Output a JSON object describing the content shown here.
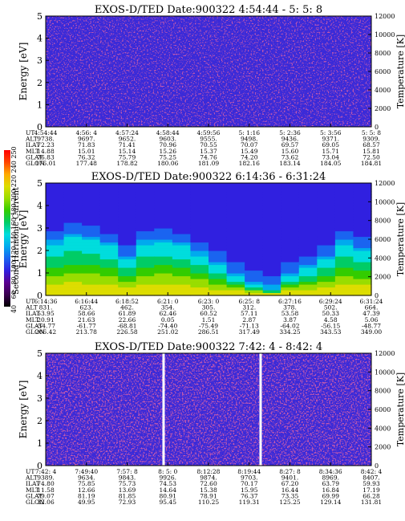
{
  "colors": {
    "background": "#ffffff",
    "panel_base": "#3a2ad8",
    "speckle": "#8a1a6a",
    "gap": "#ffffff",
    "colorbar_stops": [
      "#000000",
      "#3a0050",
      "#5a0090",
      "#3020e0",
      "#1a64f0",
      "#00aaee",
      "#00dddd",
      "#00cc66",
      "#33cc00",
      "#99dd00",
      "#dddd00",
      "#ffaa00",
      "#ff4400",
      "#ff0000"
    ]
  },
  "colorbar": {
    "label": "Second Harmonic Current",
    "ticks": [
      "40",
      "60",
      "80",
      "100",
      "120",
      "140",
      "160",
      "180",
      "200",
      "220",
      "240",
      "250"
    ]
  },
  "chart_data": [
    {
      "type": "heatmap",
      "title": "EXOS-D/TED   Date:900322  4:54:44 - 5: 5: 8",
      "ylabel": "Energy [eV]",
      "ylabel_right": "Temperature [K]",
      "ylim": [
        0,
        5
      ],
      "ylim_right": [
        0,
        12000
      ],
      "yticks": [
        "0",
        "1",
        "2",
        "3",
        "4",
        "5"
      ],
      "yticks_right": [
        "0",
        "2000",
        "4000",
        "6000",
        "8000",
        "10000",
        "12000"
      ],
      "row_labels": [
        "UT",
        "ALT",
        "ILAT",
        "MLT",
        "GLAT",
        "GLON"
      ],
      "columns": [
        {
          "UT": "4:54:44",
          "ALT": "9738.",
          "ILAT": "72.23",
          "MLT": "14.88",
          "GLAT": "76.83",
          "GLON": "176.01"
        },
        {
          "UT": "4:56: 4",
          "ALT": "9697.",
          "ILAT": "71.83",
          "MLT": "15.01",
          "GLAT": "76.32",
          "GLON": "177.48"
        },
        {
          "UT": "4:57:24",
          "ALT": "9652.",
          "ILAT": "71.41",
          "MLT": "15.14",
          "GLAT": "75.79",
          "GLON": "178.82"
        },
        {
          "UT": "4:58:44",
          "ALT": "9603.",
          "ILAT": "70.96",
          "MLT": "15.26",
          "GLAT": "75.25",
          "GLON": "180.06"
        },
        {
          "UT": "4:59:56",
          "ALT": "9555.",
          "ILAT": "70.55",
          "MLT": "15.37",
          "GLAT": "74.76",
          "GLON": "181.09"
        },
        {
          "UT": "5: 1:16",
          "ALT": "9498.",
          "ILAT": "70.07",
          "MLT": "15.49",
          "GLAT": "74.20",
          "GLON": "182.16"
        },
        {
          "UT": "5: 2:36",
          "ALT": "9436.",
          "ILAT": "69.57",
          "MLT": "15.60",
          "GLAT": "73.62",
          "GLON": "183.14"
        },
        {
          "UT": "5: 3:56",
          "ALT": "9371.",
          "ILAT": "69.05",
          "MLT": "15.71",
          "GLAT": "73.04",
          "GLON": "184.05"
        },
        {
          "UT": "5: 5: 8",
          "ALT": "9309.",
          "ILAT": "68.57",
          "MLT": "15.81",
          "GLAT": "72.50",
          "GLON": "184.81"
        }
      ],
      "gaps": []
    },
    {
      "type": "heatmap",
      "title": "EXOS-D/TED   Date:900322  6:14:36 - 6:31:24",
      "ylabel": "Energy [eV]",
      "ylabel_right": "Temperature [K]",
      "ylim": [
        0,
        5
      ],
      "ylim_right": [
        0,
        12000
      ],
      "yticks": [
        "0",
        "1",
        "2",
        "3",
        "4",
        "5"
      ],
      "yticks_right": [
        "0",
        "2000",
        "4000",
        "6000",
        "8000",
        "10000",
        "12000"
      ],
      "row_labels": [
        "UT",
        "ALT",
        "ILAT",
        "MLT",
        "GLAT",
        "GLON"
      ],
      "columns": [
        {
          "UT": "6:14:36",
          "ALT": "831.",
          "ILAT": "53.95",
          "MLT": "20.91",
          "GLAT": "-54.77",
          "GLON": "206.42"
        },
        {
          "UT": "6:16:44",
          "ALT": "623.",
          "ILAT": "58.66",
          "MLT": "21.63",
          "GLAT": "-61.77",
          "GLON": "213.78"
        },
        {
          "UT": "6:18:52",
          "ALT": "462.",
          "ILAT": "61.89",
          "MLT": "22.66",
          "GLAT": "-68.81",
          "GLON": "226.58"
        },
        {
          "UT": "6:21: 0",
          "ALT": "354.",
          "ILAT": "62.46",
          "MLT": "0.05",
          "GLAT": "-74.40",
          "GLON": "251.02"
        },
        {
          "UT": "6:23: 0",
          "ALT": "305.",
          "ILAT": "60.52",
          "MLT": "1.51",
          "GLAT": "-75.49",
          "GLON": "286.51"
        },
        {
          "UT": "6:25: 8",
          "ALT": "312.",
          "ILAT": "57.11",
          "MLT": "2.87",
          "GLAT": "-71.13",
          "GLON": "317.49"
        },
        {
          "UT": "6:27:16",
          "ALT": "378.",
          "ILAT": "53.58",
          "MLT": "3.87",
          "GLAT": "-64.02",
          "GLON": "334.25"
        },
        {
          "UT": "6:29:24",
          "ALT": "502.",
          "ILAT": "50.33",
          "MLT": "4.58",
          "GLAT": "-56.15",
          "GLON": "343.53"
        },
        {
          "UT": "6:31:24",
          "ALT": "664.",
          "ILAT": "47.39",
          "MLT": "5.06",
          "GLAT": "-48.77",
          "GLON": "349.00"
        }
      ],
      "bands_description_free": true,
      "profile": [
        2.3,
        2.6,
        2.5,
        2.2,
        1.6,
        2.3,
        2.4,
        2.2,
        1.8,
        1.4,
        0.9,
        0.5,
        0.3,
        0.9,
        1.2,
        1.6,
        2.3,
        2.0
      ],
      "gaps": []
    },
    {
      "type": "heatmap",
      "title": "EXOS-D/TED   Date:900322  7:42: 4 - 8:42: 4",
      "ylabel": "Energy [eV]",
      "ylabel_right": "Temperature [K]",
      "ylim": [
        0,
        5
      ],
      "ylim_right": [
        0,
        12000
      ],
      "yticks": [
        "0",
        "1",
        "2",
        "3",
        "4",
        "5"
      ],
      "yticks_right": [
        "0",
        "2000",
        "4000",
        "6000",
        "8000",
        "10000",
        "12000"
      ],
      "row_labels": [
        "UT",
        "ALT",
        "ILAT",
        "MLT",
        "GLAT",
        "GLON"
      ],
      "columns": [
        {
          "UT": "7:42: 4",
          "ALT": "9389.",
          "ILAT": "74.80",
          "MLT": "11.58",
          "GLAT": "79.07",
          "GLON": "32.06"
        },
        {
          "UT": "7:49:40",
          "ALT": "9634.",
          "ILAT": "75.85",
          "MLT": "12.66",
          "GLAT": "81.19",
          "GLON": "49.95"
        },
        {
          "UT": "7:57: 8",
          "ALT": "9843.",
          "ILAT": "75.73",
          "MLT": "13.69",
          "GLAT": "81.85",
          "GLON": "72.93"
        },
        {
          "UT": "8: 5: 0",
          "ALT": "9926.",
          "ILAT": "74.53",
          "MLT": "14.64",
          "GLAT": "80.91",
          "GLON": "95.45"
        },
        {
          "UT": "8:12:28",
          "ALT": "9874.",
          "ILAT": "72.60",
          "MLT": "15.38",
          "GLAT": "78.91",
          "GLON": "110.25"
        },
        {
          "UT": "8:19:44",
          "ALT": "9703.",
          "ILAT": "70.17",
          "MLT": "15.95",
          "GLAT": "76.37",
          "GLON": "119.31"
        },
        {
          "UT": "8:27: 8",
          "ALT": "9401.",
          "ILAT": "67.20",
          "MLT": "16.44",
          "GLAT": "73.35",
          "GLON": "125.25"
        },
        {
          "UT": "8:34:36",
          "ALT": "8969.",
          "ILAT": "63.79",
          "MLT": "16.84",
          "GLAT": "69.99",
          "GLON": "129.14"
        },
        {
          "UT": "8:42: 4",
          "ALT": "8407.",
          "ILAT": "59.93",
          "MLT": "17.19",
          "GLAT": "66.28",
          "GLON": "131.81"
        }
      ],
      "gaps": [
        0.362,
        0.66
      ]
    }
  ]
}
